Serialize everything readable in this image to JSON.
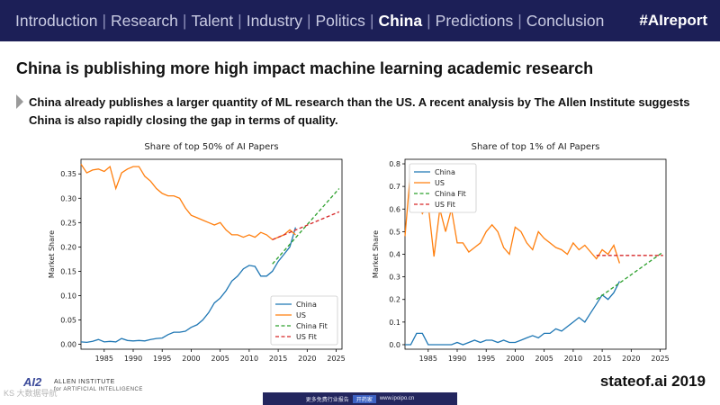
{
  "nav": {
    "items": [
      "Introduction",
      "Research",
      "Talent",
      "Industry",
      "Politics",
      "China",
      "Predictions",
      "Conclusion"
    ],
    "active": "China",
    "hashtag": "#AIreport"
  },
  "headline": "China is publishing more high impact machine learning academic research",
  "bullet": {
    "icon": "triangle-bullet-icon",
    "text": "China already publishes a larger quantity of ML research than the US. A recent analysis by The Allen Institute suggests China is also rapidly closing the gap in terms of quality."
  },
  "colors": {
    "china": "#1f77b4",
    "us": "#ff7f0e",
    "china_fit": "#2ca02c",
    "us_fit": "#d62728",
    "nav_bg": "#1c1f57"
  },
  "chart_data": [
    {
      "type": "line",
      "title": "Share of top 50% of AI Papers",
      "ylabel": "Market Share",
      "xlabel": "",
      "xlim": [
        1981,
        2026
      ],
      "ylim": [
        -0.01,
        0.38
      ],
      "xticks": [
        1985,
        1990,
        1995,
        2000,
        2005,
        2010,
        2015,
        2020,
        2025
      ],
      "yticks": [
        "0.00",
        "0.05",
        "0.10",
        "0.15",
        "0.20",
        "0.25",
        "0.30",
        "0.35"
      ],
      "grid": false,
      "legend_position": "lower-right",
      "series": [
        {
          "name": "China",
          "style": "solid",
          "color": "#1f77b4",
          "x": [
            1981,
            1982,
            1983,
            1984,
            1985,
            1986,
            1987,
            1988,
            1989,
            1990,
            1991,
            1992,
            1993,
            1994,
            1995,
            1996,
            1997,
            1998,
            1999,
            2000,
            2001,
            2002,
            2003,
            2004,
            2005,
            2006,
            2007,
            2008,
            2009,
            2010,
            2011,
            2012,
            2013,
            2014,
            2015,
            2016,
            2017,
            2018
          ],
          "y": [
            0.005,
            0.004,
            0.006,
            0.01,
            0.005,
            0.006,
            0.005,
            0.012,
            0.008,
            0.007,
            0.008,
            0.007,
            0.01,
            0.012,
            0.013,
            0.02,
            0.025,
            0.025,
            0.027,
            0.035,
            0.04,
            0.05,
            0.065,
            0.085,
            0.095,
            0.11,
            0.13,
            0.14,
            0.155,
            0.162,
            0.16,
            0.14,
            0.14,
            0.15,
            0.17,
            0.185,
            0.2,
            0.24
          ]
        },
        {
          "name": "US",
          "style": "solid",
          "color": "#ff7f0e",
          "x": [
            1981,
            1982,
            1983,
            1984,
            1985,
            1986,
            1987,
            1988,
            1989,
            1990,
            1991,
            1992,
            1993,
            1994,
            1995,
            1996,
            1997,
            1998,
            1999,
            2000,
            2001,
            2002,
            2003,
            2004,
            2005,
            2006,
            2007,
            2008,
            2009,
            2010,
            2011,
            2012,
            2013,
            2014,
            2015,
            2016,
            2017,
            2018
          ],
          "y": [
            0.37,
            0.352,
            0.358,
            0.36,
            0.355,
            0.365,
            0.32,
            0.352,
            0.36,
            0.365,
            0.365,
            0.345,
            0.335,
            0.32,
            0.31,
            0.305,
            0.305,
            0.3,
            0.28,
            0.265,
            0.26,
            0.255,
            0.25,
            0.245,
            0.25,
            0.235,
            0.225,
            0.225,
            0.22,
            0.225,
            0.22,
            0.23,
            0.225,
            0.215,
            0.22,
            0.225,
            0.235,
            0.225
          ]
        },
        {
          "name": "China Fit",
          "style": "dashed",
          "color": "#2ca02c",
          "x": [
            2014,
            2025.5
          ],
          "y": [
            0.165,
            0.32
          ]
        },
        {
          "name": "US Fit",
          "style": "dashed",
          "color": "#d62728",
          "x": [
            2014,
            2025.5
          ],
          "y": [
            0.215,
            0.272
          ]
        }
      ]
    },
    {
      "type": "line",
      "title": "Share of top 1% of AI Papers",
      "ylabel": "Market Share",
      "xlabel": "",
      "xlim": [
        1981,
        2026
      ],
      "ylim": [
        -0.02,
        0.82
      ],
      "xticks": [
        1985,
        1990,
        1995,
        2000,
        2005,
        2010,
        2015,
        2020,
        2025
      ],
      "yticks": [
        "0.0",
        "0.1",
        "0.2",
        "0.3",
        "0.4",
        "0.5",
        "0.6",
        "0.7",
        "0.8"
      ],
      "grid": false,
      "legend_position": "upper-left",
      "series": [
        {
          "name": "China",
          "style": "solid",
          "color": "#1f77b4",
          "x": [
            1981,
            1982,
            1983,
            1984,
            1985,
            1986,
            1987,
            1988,
            1989,
            1990,
            1991,
            1992,
            1993,
            1994,
            1995,
            1996,
            1997,
            1998,
            1999,
            2000,
            2001,
            2002,
            2003,
            2004,
            2005,
            2006,
            2007,
            2008,
            2009,
            2010,
            2011,
            2012,
            2013,
            2014,
            2015,
            2016,
            2017,
            2018
          ],
          "y": [
            0.0,
            0.0,
            0.05,
            0.05,
            0.0,
            0.0,
            0.0,
            0.0,
            0.0,
            0.01,
            0.0,
            0.01,
            0.02,
            0.01,
            0.02,
            0.02,
            0.01,
            0.02,
            0.01,
            0.01,
            0.02,
            0.03,
            0.04,
            0.03,
            0.05,
            0.05,
            0.07,
            0.06,
            0.08,
            0.1,
            0.12,
            0.1,
            0.14,
            0.18,
            0.22,
            0.2,
            0.23,
            0.28
          ]
        },
        {
          "name": "US",
          "style": "solid",
          "color": "#ff7f0e",
          "x": [
            1981,
            1982,
            1983,
            1984,
            1985,
            1986,
            1987,
            1988,
            1989,
            1990,
            1991,
            1992,
            1993,
            1994,
            1995,
            1996,
            1997,
            1998,
            1999,
            2000,
            2001,
            2002,
            2003,
            2004,
            2005,
            2006,
            2007,
            2008,
            2009,
            2010,
            2011,
            2012,
            2013,
            2014,
            2015,
            2016,
            2017,
            2018
          ],
          "y": [
            0.48,
            0.78,
            0.65,
            0.58,
            0.62,
            0.39,
            0.6,
            0.5,
            0.6,
            0.45,
            0.45,
            0.41,
            0.43,
            0.45,
            0.5,
            0.53,
            0.5,
            0.43,
            0.4,
            0.52,
            0.5,
            0.45,
            0.42,
            0.5,
            0.47,
            0.45,
            0.43,
            0.42,
            0.4,
            0.45,
            0.42,
            0.44,
            0.41,
            0.38,
            0.42,
            0.4,
            0.44,
            0.36
          ]
        },
        {
          "name": "China Fit",
          "style": "dashed",
          "color": "#2ca02c",
          "x": [
            2014,
            2025.5
          ],
          "y": [
            0.2,
            0.41
          ]
        },
        {
          "name": "US Fit",
          "style": "dashed",
          "color": "#d62728",
          "x": [
            2014,
            2025.5
          ],
          "y": [
            0.395,
            0.395
          ]
        }
      ]
    }
  ],
  "footer": {
    "logo_mark": "AI2",
    "logo_name": "ALLEN INSTITUTE",
    "logo_sub": "for ARTIFICIAL INTELLIGENCE",
    "credit": "stateof.ai 2019",
    "banner_text": "更多免费行业报告",
    "banner_tag": "开药家",
    "banner_url": "www.ipoipo.cn",
    "watermark": "KS 大数据导航"
  }
}
